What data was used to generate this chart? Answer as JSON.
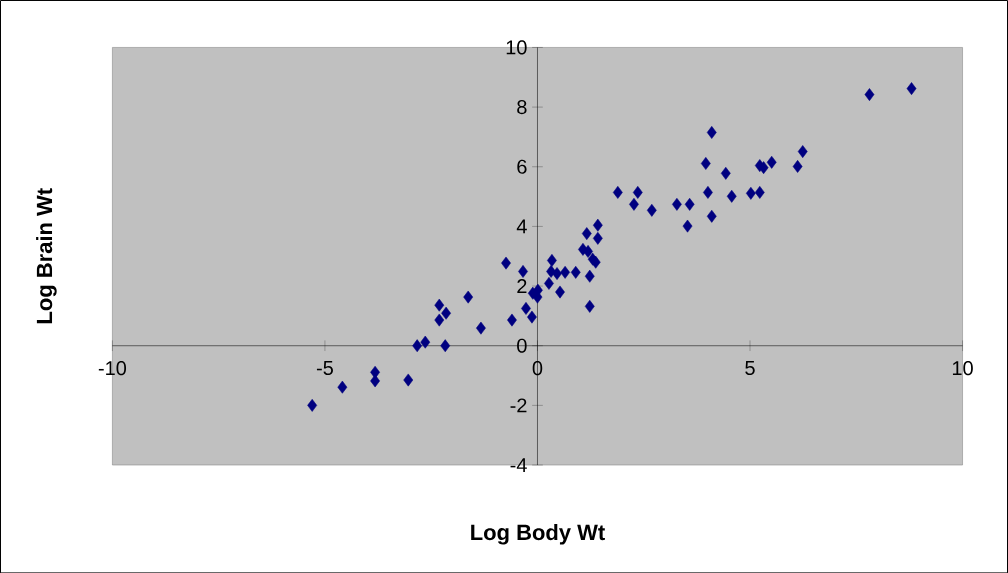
{
  "chart_data": {
    "type": "scatter",
    "xlabel": "Log Body Wt",
    "ylabel": "Log Brain Wt",
    "x": [
      -5.3,
      -4.59,
      -3.82,
      -3.82,
      -3.04,
      -2.83,
      -2.64,
      -2.31,
      -2.31,
      -2.15,
      -2.17,
      -1.63,
      -1.33,
      -0.74,
      -0.34,
      -0.6,
      -0.27,
      -0.13,
      -0.11,
      0.01,
      0.0,
      0.34,
      0.32,
      0.27,
      0.53,
      0.46,
      0.65,
      0.9,
      1.23,
      1.23,
      1.07,
      1.19,
      1.3,
      1.37,
      1.16,
      1.42,
      1.42,
      1.89,
      2.36,
      2.27,
      2.69,
      3.28,
      3.58,
      3.53,
      4.1,
      3.96,
      4.43,
      4.01,
      4.57,
      4.1,
      5.02,
      5.23,
      5.23,
      5.32,
      5.51,
      6.12,
      6.24,
      7.81,
      8.8
    ],
    "values": [
      -2.0,
      -1.39,
      -0.89,
      -1.18,
      -1.15,
      0.0,
      0.12,
      1.36,
      0.86,
      1.09,
      0.0,
      1.63,
      0.59,
      2.77,
      2.49,
      0.86,
      1.25,
      0.96,
      1.76,
      1.86,
      1.63,
      2.86,
      2.49,
      2.09,
      1.8,
      2.42,
      2.46,
      2.46,
      2.33,
      1.32,
      3.23,
      3.16,
      2.9,
      2.8,
      3.76,
      4.04,
      3.6,
      5.14,
      5.14,
      4.74,
      4.54,
      4.74,
      4.74,
      4.01,
      7.15,
      6.11,
      5.78,
      5.14,
      5.01,
      4.34,
      5.11,
      5.14,
      6.04,
      5.97,
      6.15,
      6.01,
      6.51,
      8.42,
      8.62
    ],
    "color": "#000080",
    "marker": "diamond",
    "xlim": [
      -10,
      10
    ],
    "ylim": [
      -4,
      10
    ],
    "xticks": [
      -10,
      -5,
      0,
      5,
      10
    ],
    "yticks": [
      -4,
      -2,
      0,
      2,
      4,
      6,
      8,
      10
    ]
  }
}
